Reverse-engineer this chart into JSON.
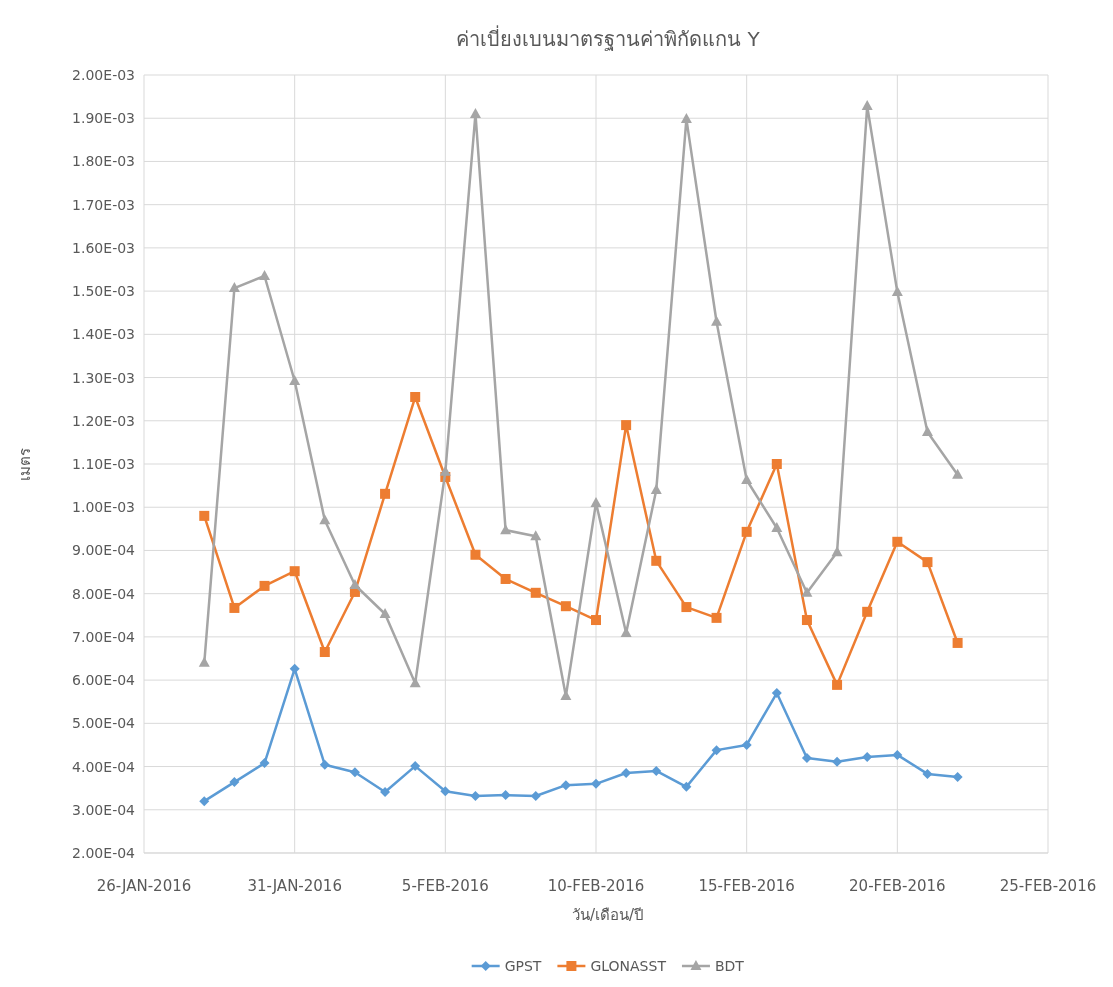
{
  "chart_data": {
    "type": "line",
    "title": "ค่าเบี่ยงเบนมาตรฐานค่าพิกัดแกน Y",
    "xlabel": "วัน/เดือน/ปี",
    "ylabel": "เมตร",
    "x": [
      "2016-01-28",
      "2016-01-29",
      "2016-01-30",
      "2016-01-31",
      "2016-02-01",
      "2016-02-02",
      "2016-02-03",
      "2016-02-04",
      "2016-02-05",
      "2016-02-06",
      "2016-02-07",
      "2016-02-08",
      "2016-02-09",
      "2016-02-10",
      "2016-02-11",
      "2016-02-12",
      "2016-02-13",
      "2016-02-14",
      "2016-02-15",
      "2016-02-16",
      "2016-02-17",
      "2016-02-18",
      "2016-02-19",
      "2016-02-20",
      "2016-02-21",
      "2016-02-22"
    ],
    "series": [
      {
        "name": "GPST",
        "color": "#5b9bd5",
        "marker": "diamond",
        "values": [
          0.00032,
          0.000364,
          0.000408,
          0.000626,
          0.000404,
          0.000387,
          0.000341,
          0.000401,
          0.000343,
          0.000332,
          0.000334,
          0.000332,
          0.000357,
          0.00036,
          0.000385,
          0.00039,
          0.000353,
          0.000438,
          0.00045,
          0.00057,
          0.00042,
          0.000411,
          0.000422,
          0.000427,
          0.000383,
          0.000376
        ]
      },
      {
        "name": "GLONASST",
        "color": "#ed7d31",
        "marker": "square",
        "values": [
          0.00098,
          0.000767,
          0.000818,
          0.000852,
          0.000665,
          0.000804,
          0.001031,
          0.001255,
          0.00107,
          0.00089,
          0.000834,
          0.000802,
          0.000771,
          0.000739,
          0.00119,
          0.000876,
          0.000769,
          0.000744,
          0.000943,
          0.0011,
          0.000739,
          0.000589,
          0.000758,
          0.00092,
          0.000873,
          0.000686
        ]
      },
      {
        "name": "BDT",
        "color": "#a5a5a5",
        "marker": "triangle",
        "values": [
          0.00064,
          0.001507,
          0.001535,
          0.001292,
          0.00097,
          0.00082,
          0.000753,
          0.000593,
          0.001082,
          0.00191,
          0.000947,
          0.000933,
          0.000563,
          0.00101,
          0.000709,
          0.00104,
          0.001898,
          0.001429,
          0.001063,
          0.000952,
          0.000802,
          0.000896,
          0.001928,
          0.001498,
          0.001174,
          0.001075
        ]
      }
    ],
    "xlim": [
      "2016-01-26",
      "2016-02-25"
    ],
    "xticks": [
      {
        "value": "2016-01-26",
        "label": "26-JAN-2016"
      },
      {
        "value": "2016-01-31",
        "label": "31-JAN-2016"
      },
      {
        "value": "2016-02-05",
        "label": "5-FEB-2016"
      },
      {
        "value": "2016-02-10",
        "label": "10-FEB-2016"
      },
      {
        "value": "2016-02-15",
        "label": "15-FEB-2016"
      },
      {
        "value": "2016-02-20",
        "label": "20-FEB-2016"
      },
      {
        "value": "2016-02-25",
        "label": "25-FEB-2016"
      }
    ],
    "ylim": [
      0.0002,
      0.002
    ],
    "yticks": [
      {
        "value": 0.0002,
        "label": "2.00E-04"
      },
      {
        "value": 0.0003,
        "label": "3.00E-04"
      },
      {
        "value": 0.0004,
        "label": "4.00E-04"
      },
      {
        "value": 0.0005,
        "label": "5.00E-04"
      },
      {
        "value": 0.0006,
        "label": "6.00E-04"
      },
      {
        "value": 0.0007,
        "label": "7.00E-04"
      },
      {
        "value": 0.0008,
        "label": "8.00E-04"
      },
      {
        "value": 0.0009,
        "label": "9.00E-04"
      },
      {
        "value": 0.001,
        "label": "1.00E-03"
      },
      {
        "value": 0.0011,
        "label": "1.10E-03"
      },
      {
        "value": 0.0012,
        "label": "1.20E-03"
      },
      {
        "value": 0.0013,
        "label": "1.30E-03"
      },
      {
        "value": 0.0014,
        "label": "1.40E-03"
      },
      {
        "value": 0.0015,
        "label": "1.50E-03"
      },
      {
        "value": 0.0016,
        "label": "1.60E-03"
      },
      {
        "value": 0.0017,
        "label": "1.70E-03"
      },
      {
        "value": 0.0018,
        "label": "1.80E-03"
      },
      {
        "value": 0.0019,
        "label": "1.90E-03"
      },
      {
        "value": 0.002,
        "label": "2.00E-03"
      }
    ],
    "grid": true,
    "legend": "bottom"
  }
}
